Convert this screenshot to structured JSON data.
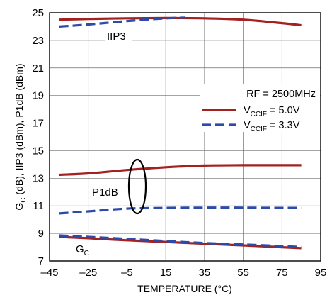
{
  "chart_data": {
    "type": "line",
    "xlabel": "TEMPERATURE (°C)",
    "ylabel": "G",
    "ylabel_sub": "C",
    "ylabel_rest": " (dB), IIP3 (dBm), P1dB (dBm)",
    "xlim": [
      -45,
      95
    ],
    "ylim": [
      7,
      25
    ],
    "xticks": [
      "–45",
      "–25",
      "–5",
      "15",
      "35",
      "55",
      "75",
      "95"
    ],
    "xtick_values": [
      -45,
      -25,
      -5,
      15,
      35,
      55,
      75,
      95
    ],
    "yticks": [
      "7",
      "9",
      "11",
      "13",
      "15",
      "17",
      "19",
      "21",
      "23",
      "25"
    ],
    "ytick_values": [
      7,
      9,
      11,
      13,
      15,
      17,
      19,
      21,
      23,
      25
    ],
    "grid": true,
    "legend_title": "RF = 2500MHz",
    "legend": [
      {
        "prefix": "V",
        "sub": "CCIF",
        "suffix": " = 5.0V",
        "style": "solid",
        "color": "#a32121"
      },
      {
        "prefix": "V",
        "sub": "CCIF",
        "suffix": " = 3.3V",
        "style": "dashed",
        "color": "#2c4aa8"
      }
    ],
    "annotations": {
      "iip3": "IIP3",
      "p1db": "P1dB",
      "gc_main": "G",
      "gc_sub": "C"
    },
    "series": [
      {
        "curve": "IIP3",
        "supply": "5.0V",
        "style": "solid",
        "color": "#a32121",
        "x": [
          -40,
          -25,
          -5,
          15,
          35,
          55,
          75,
          85
        ],
        "y": [
          24.5,
          24.55,
          24.6,
          24.62,
          24.6,
          24.5,
          24.25,
          24.1
        ]
      },
      {
        "curve": "IIP3",
        "supply": "3.3V",
        "style": "dashed",
        "color": "#2c4aa8",
        "x": [
          -40,
          -25,
          -5,
          15,
          25
        ],
        "y": [
          24.0,
          24.15,
          24.4,
          24.6,
          24.65
        ]
      },
      {
        "curve": "P1dB",
        "supply": "5.0V",
        "style": "solid",
        "color": "#a32121",
        "x": [
          -40,
          -25,
          -5,
          15,
          35,
          55,
          75,
          85
        ],
        "y": [
          13.25,
          13.35,
          13.6,
          13.8,
          13.92,
          13.95,
          13.95,
          13.95
        ]
      },
      {
        "curve": "P1dB",
        "supply": "3.3V",
        "style": "dashed",
        "color": "#2c4aa8",
        "x": [
          -40,
          -25,
          -5,
          15,
          35,
          55,
          75,
          85
        ],
        "y": [
          10.45,
          10.6,
          10.8,
          10.85,
          10.87,
          10.87,
          10.85,
          10.85
        ]
      },
      {
        "curve": "GC",
        "supply": "5.0V",
        "style": "solid",
        "color": "#a32121",
        "x": [
          -40,
          -25,
          -5,
          15,
          35,
          55,
          75,
          85
        ],
        "y": [
          8.75,
          8.65,
          8.5,
          8.38,
          8.25,
          8.13,
          8.0,
          7.93
        ]
      },
      {
        "curve": "GC",
        "supply": "3.3V",
        "style": "dashed",
        "color": "#2c4aa8",
        "x": [
          -40,
          -25,
          -5,
          15,
          35,
          55,
          75,
          85
        ],
        "y": [
          8.85,
          8.75,
          8.6,
          8.45,
          8.3,
          8.2,
          8.08,
          8.02
        ]
      }
    ]
  }
}
